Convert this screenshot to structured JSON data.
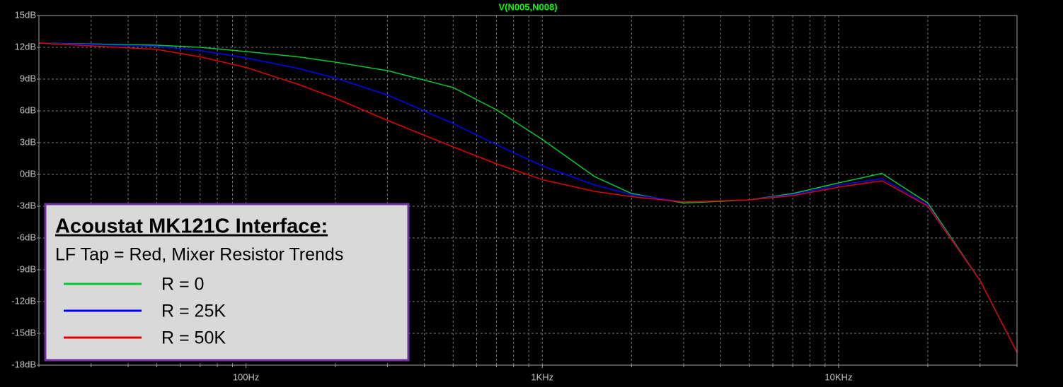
{
  "chart_data": {
    "type": "line",
    "title": "V(N005,N008)",
    "legend_title": "Acoustat MK121C Interface:",
    "legend_subtitle": "LF Tap = Red, Mixer Resistor Trends",
    "log_x": true,
    "grid": true,
    "x": [
      20,
      50,
      70,
      100,
      150,
      200,
      300,
      500,
      700,
      1000,
      1500,
      2000,
      3000,
      5000,
      7000,
      10000,
      14000,
      20000,
      30000,
      40000
    ],
    "series": [
      {
        "name": "R = 0",
        "color": "#00c832",
        "values": [
          12.4,
          12.2,
          12.0,
          11.6,
          11.1,
          10.6,
          9.8,
          8.2,
          6.1,
          3.3,
          -0.2,
          -1.8,
          -2.7,
          -2.4,
          -1.8,
          -0.8,
          0.1,
          -2.7,
          -10,
          -16.8
        ]
      },
      {
        "name": "R = 25K",
        "color": "#0000ff",
        "values": [
          12.4,
          12.1,
          11.7,
          11.0,
          10.0,
          9.1,
          7.5,
          4.8,
          2.8,
          0.8,
          -1.0,
          -1.9,
          -2.6,
          -2.4,
          -1.9,
          -1.0,
          -0.4,
          -2.9,
          -10,
          -16.8
        ]
      },
      {
        "name": "R = 50K",
        "color": "#e00000",
        "values": [
          12.4,
          11.8,
          11.1,
          10.1,
          8.5,
          7.2,
          5.1,
          2.6,
          1.0,
          -0.5,
          -1.6,
          -2.1,
          -2.6,
          -2.4,
          -2.0,
          -1.2,
          -0.6,
          -3.0,
          -10,
          -16.8
        ]
      }
    ],
    "xlim": [
      20,
      40000
    ],
    "xticks": [
      {
        "value": 100,
        "label": "100Hz"
      },
      {
        "value": 1000,
        "label": "1KHz"
      },
      {
        "value": 10000,
        "label": "10KHz"
      }
    ],
    "x_minor_ticks": [
      20,
      30,
      40,
      50,
      60,
      70,
      80,
      90,
      200,
      300,
      400,
      500,
      600,
      700,
      800,
      900,
      2000,
      3000,
      4000,
      5000,
      6000,
      7000,
      8000,
      9000,
      20000,
      30000,
      40000
    ],
    "ylim": [
      -18,
      15
    ],
    "yticks": [
      {
        "value": 15,
        "label": "15dB"
      },
      {
        "value": 12,
        "label": "12dB"
      },
      {
        "value": 9,
        "label": "9dB"
      },
      {
        "value": 6,
        "label": "6dB"
      },
      {
        "value": 3,
        "label": "3dB"
      },
      {
        "value": 0,
        "label": "0dB"
      },
      {
        "value": -3,
        "label": "-3dB"
      },
      {
        "value": -6,
        "label": "-6dB"
      },
      {
        "value": -9,
        "label": "-9dB"
      },
      {
        "value": -12,
        "label": "-12dB"
      },
      {
        "value": -15,
        "label": "-15dB"
      },
      {
        "value": -18,
        "label": "-18dB"
      }
    ]
  }
}
